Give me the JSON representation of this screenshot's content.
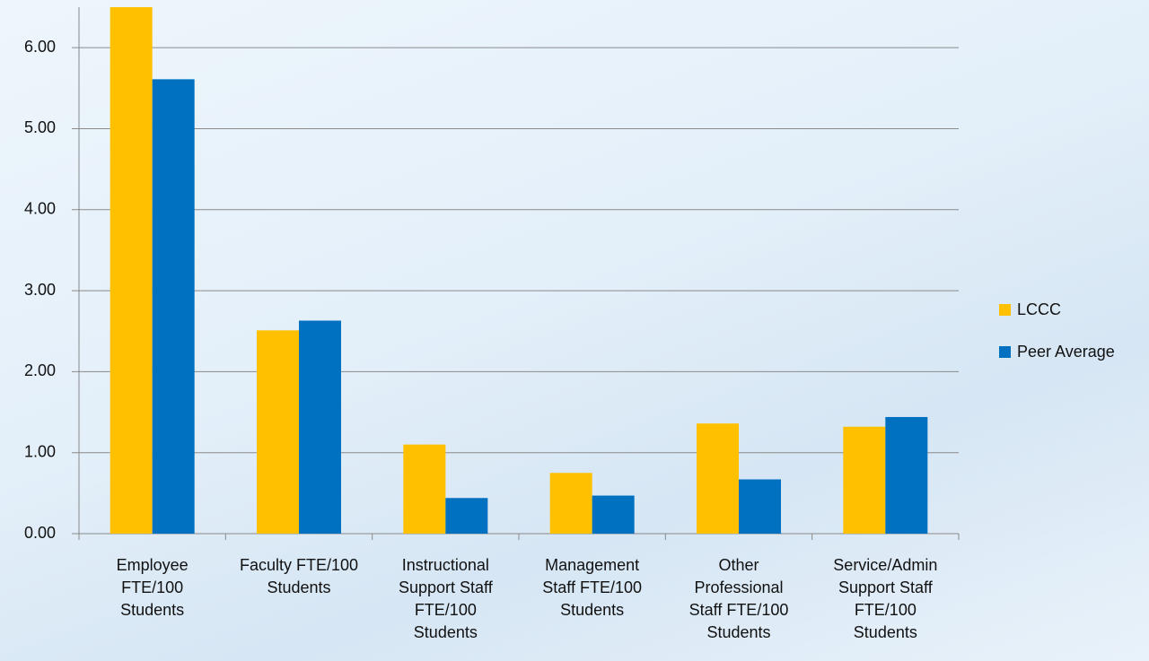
{
  "chart_data": {
    "type": "bar",
    "categories": [
      "Employee FTE/100 Students",
      "Faculty FTE/100 Students",
      "Instructional Support Staff FTE/100 Students",
      "Management Staff FTE/100 Students",
      "Other Professional Staff FTE/100 Students",
      "Service/Admin Support Staff FTE/100 Students"
    ],
    "series": [
      {
        "name": "LCCC",
        "color": "#ffc000",
        "values": [
          6.5,
          2.51,
          1.1,
          0.75,
          1.36,
          1.32
        ]
      },
      {
        "name": "Peer Average",
        "color": "#0070c0",
        "values": [
          5.61,
          2.63,
          0.44,
          0.47,
          0.67,
          1.44
        ]
      }
    ],
    "ylim": [
      0,
      6.5
    ],
    "yticks": [
      {
        "value": 0,
        "label": "0.00"
      },
      {
        "value": 1,
        "label": "1.00"
      },
      {
        "value": 2,
        "label": "2.00"
      },
      {
        "value": 3,
        "label": "3.00"
      },
      {
        "value": 4,
        "label": "4.00"
      },
      {
        "value": 5,
        "label": "5.00"
      },
      {
        "value": 6,
        "label": "6.00"
      }
    ],
    "grid": true,
    "legend": "right"
  }
}
